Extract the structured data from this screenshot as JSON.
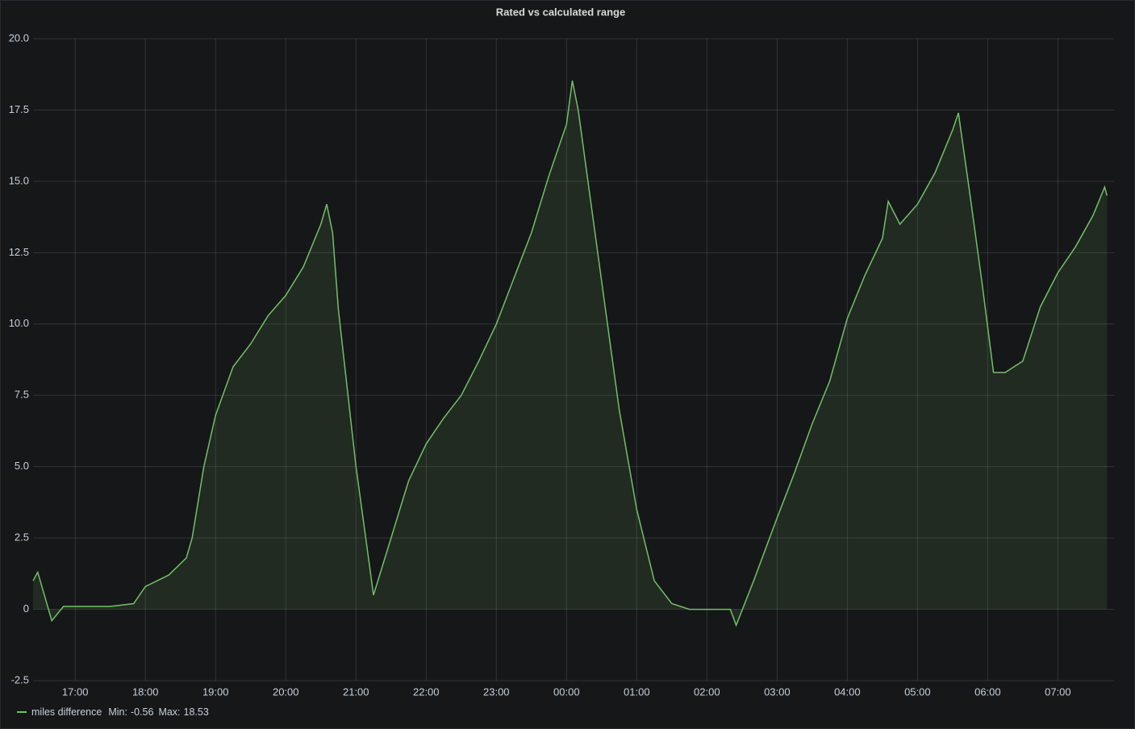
{
  "chart_data": {
    "type": "area",
    "title": "Rated vs calculated range",
    "x": [
      "16:24",
      "16:28",
      "16:40",
      "16:50",
      "17:30",
      "17:50",
      "18:00",
      "18:20",
      "18:35",
      "18:40",
      "18:50",
      "19:00",
      "19:15",
      "19:30",
      "19:45",
      "20:00",
      "20:15",
      "20:30",
      "20:35",
      "20:40",
      "20:45",
      "21:00",
      "21:10",
      "21:15",
      "21:30",
      "21:45",
      "22:00",
      "22:15",
      "22:30",
      "22:45",
      "23:00",
      "23:15",
      "23:30",
      "23:45",
      "00:00",
      "00:05",
      "00:10",
      "00:20",
      "00:30",
      "00:45",
      "01:00",
      "01:15",
      "01:30",
      "01:45",
      "02:00",
      "02:20",
      "02:25",
      "02:40",
      "03:00",
      "03:15",
      "03:30",
      "03:45",
      "04:00",
      "04:15",
      "04:30",
      "04:35",
      "04:45",
      "05:00",
      "05:15",
      "05:30",
      "05:35",
      "05:45",
      "05:55",
      "06:05",
      "06:15",
      "06:30",
      "06:45",
      "07:00",
      "07:15",
      "07:30",
      "07:40",
      "07:42"
    ],
    "series": [
      {
        "name": "miles difference",
        "color": "#73bf69",
        "values": [
          1.0,
          1.3,
          -0.4,
          0.1,
          0.1,
          0.2,
          0.8,
          1.2,
          1.8,
          2.5,
          5.0,
          6.8,
          8.5,
          9.3,
          10.3,
          11.0,
          12.0,
          13.5,
          14.2,
          13.2,
          10.5,
          5.0,
          2.0,
          0.5,
          2.5,
          4.5,
          5.8,
          6.7,
          7.5,
          8.7,
          10.0,
          11.6,
          13.2,
          15.2,
          17.0,
          18.53,
          17.5,
          14.5,
          11.5,
          7.0,
          3.5,
          1.0,
          0.2,
          0.0,
          0.0,
          0.0,
          -0.56,
          1.0,
          3.2,
          4.8,
          6.5,
          8.0,
          10.2,
          11.7,
          13.0,
          14.3,
          13.5,
          14.2,
          15.3,
          16.8,
          17.4,
          14.5,
          11.5,
          8.3,
          8.3,
          8.7,
          10.6,
          11.8,
          12.7,
          13.8,
          14.8,
          14.5
        ]
      }
    ],
    "legend_stats": [
      {
        "label": "Min:",
        "value": -0.56
      },
      {
        "label": "Max:",
        "value": 18.53
      }
    ],
    "xlim": [
      "16:24",
      "07:48"
    ],
    "xticks": [
      "17:00",
      "18:00",
      "19:00",
      "20:00",
      "21:00",
      "22:00",
      "23:00",
      "00:00",
      "01:00",
      "02:00",
      "03:00",
      "04:00",
      "05:00",
      "06:00",
      "07:00"
    ],
    "ylim": [
      -2.5,
      20
    ],
    "yticks": [
      -2.5,
      0,
      2.5,
      {
        "value": 5,
        "label": "5.0"
      },
      7.5,
      {
        "value": 10,
        "label": "10.0"
      },
      12.5,
      {
        "value": 15,
        "label": "15.0"
      },
      17.5,
      {
        "value": 20,
        "label": "20.0"
      }
    ],
    "grid": true,
    "legend": "bottom-left"
  }
}
